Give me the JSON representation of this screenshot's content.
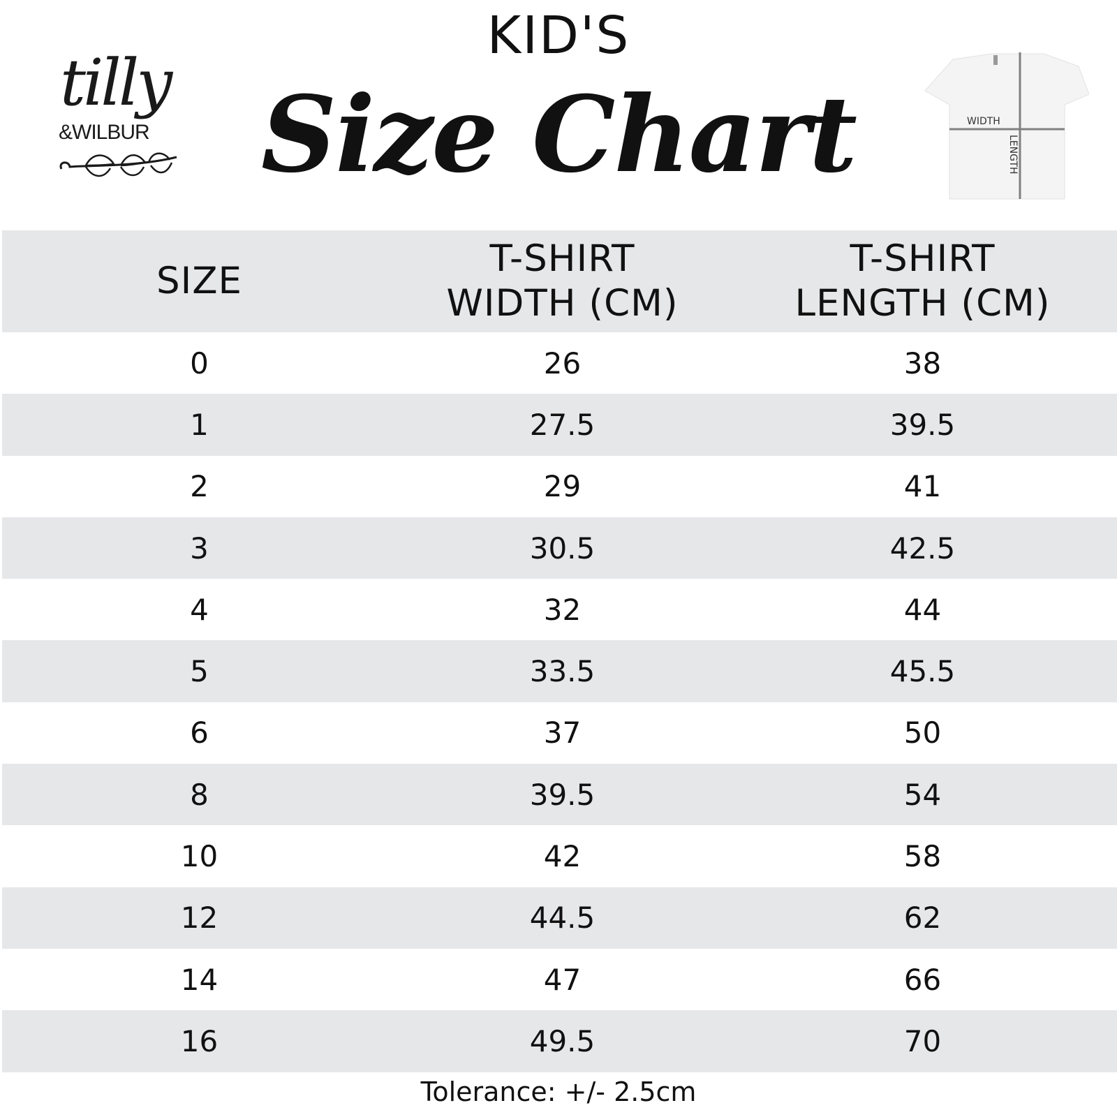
{
  "logo": {
    "line1": "tilly",
    "line2": "&WILBUR"
  },
  "header": {
    "kicker": "KID'S",
    "title": "Size Chart"
  },
  "diagram": {
    "width_label": "WIDTH",
    "length_label": "LENGTH"
  },
  "table": {
    "columns": [
      "SIZE",
      "T-SHIRT WIDTH (CM)",
      "T-SHIRT LENGTH (CM)"
    ],
    "column_lines": [
      [
        "SIZE"
      ],
      [
        "T-SHIRT",
        "WIDTH (CM)"
      ],
      [
        "T-SHIRT",
        "LENGTH (CM)"
      ]
    ],
    "rows": [
      [
        "0",
        "26",
        "38"
      ],
      [
        "1",
        "27.5",
        "39.5"
      ],
      [
        "2",
        "29",
        "41"
      ],
      [
        "3",
        "30.5",
        "42.5"
      ],
      [
        "4",
        "32",
        "44"
      ],
      [
        "5",
        "33.5",
        "45.5"
      ],
      [
        "6",
        "37",
        "50"
      ],
      [
        "8",
        "39.5",
        "54"
      ],
      [
        "10",
        "42",
        "58"
      ],
      [
        "12",
        "44.5",
        "62"
      ],
      [
        "14",
        "47",
        "66"
      ],
      [
        "16",
        "49.5",
        "70"
      ]
    ]
  },
  "footer": {
    "tolerance": "Tolerance: +/- 2.5cm"
  },
  "colors": {
    "row_stripe": "#e6e7e9",
    "text": "#111111"
  }
}
